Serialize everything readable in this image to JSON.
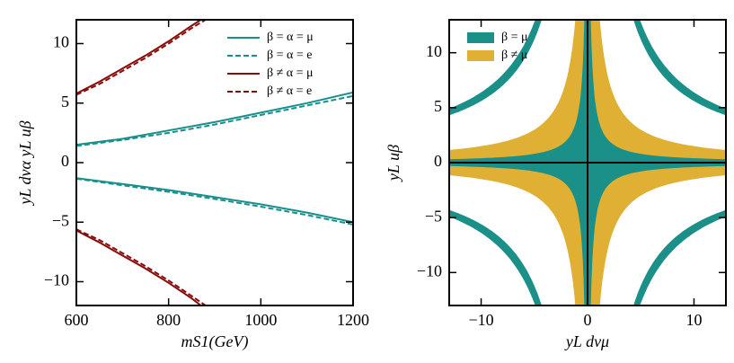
{
  "chart_data": [
    {
      "type": "line",
      "xlabel": "mS1(GeV)",
      "ylabel": "yL dνα yL uβ",
      "xlim": [
        600,
        1200
      ],
      "ylim": [
        -12,
        12
      ],
      "xticks": [
        600,
        800,
        1000,
        1200
      ],
      "yticks": [
        {
          "value": -10,
          "label": "−10"
        },
        {
          "value": -5,
          "label": "−5"
        },
        0,
        5,
        10
      ],
      "legend": "upper right",
      "series": [
        {
          "name": "β = α = μ",
          "color": "#17908c",
          "dash": false,
          "x": [
            600,
            700,
            800,
            900,
            1000,
            1100,
            1200,
            null,
            600,
            700,
            800,
            900,
            1000,
            1100,
            1200
          ],
          "values": [
            1.5,
            2.0,
            2.7,
            3.4,
            4.2,
            5.0,
            5.9,
            null,
            -1.3,
            -1.8,
            -2.3,
            -2.9,
            -3.5,
            -4.2,
            -5.0
          ]
        },
        {
          "name": "β = α = e",
          "color": "#17908c",
          "dash": true,
          "x": [
            600,
            700,
            800,
            900,
            1000,
            1100,
            1200,
            null,
            600,
            700,
            800,
            900,
            1000,
            1100,
            1200
          ],
          "values": [
            1.4,
            1.9,
            2.5,
            3.2,
            4.0,
            4.8,
            5.6,
            null,
            -1.35,
            -1.9,
            -2.45,
            -3.05,
            -3.7,
            -4.4,
            -5.2
          ]
        },
        {
          "name": "β ≠ α = μ",
          "color": "#8b0a0a",
          "dash": false,
          "x": [
            600,
            650,
            700,
            750,
            800,
            850,
            870,
            null,
            600,
            650,
            700,
            750,
            800,
            850,
            870
          ],
          "values": [
            5.8,
            6.8,
            7.9,
            9.0,
            10.2,
            11.5,
            12,
            null,
            -5.7,
            -6.7,
            -7.8,
            -8.9,
            -10.1,
            -11.4,
            -12
          ]
        },
        {
          "name": "β ≠ α = e",
          "color": "#8b0a0a",
          "dash": true,
          "x": [
            600,
            650,
            700,
            750,
            800,
            850,
            880,
            null,
            600,
            650,
            700,
            750,
            800,
            850,
            880
          ],
          "values": [
            5.7,
            6.6,
            7.7,
            8.8,
            10.0,
            11.3,
            12,
            null,
            -5.6,
            -6.5,
            -7.6,
            -8.7,
            -9.9,
            -11.2,
            -12
          ]
        }
      ]
    },
    {
      "type": "region",
      "xlabel": "yL dνμ",
      "ylabel": "yL uβ",
      "xlim": [
        -13,
        13
      ],
      "ylim": [
        -13,
        13
      ],
      "xticks": [
        {
          "value": -10,
          "label": "−10"
        },
        0,
        10
      ],
      "yticks": [
        {
          "value": -10,
          "label": "−10"
        },
        {
          "value": -5,
          "label": "−5"
        },
        0,
        5,
        10
      ],
      "legend": "upper left",
      "series": [
        {
          "name": "β = μ",
          "color": "#1a9088",
          "bands": [
            [
              0,
              4
            ],
            [
              56,
              64
            ]
          ]
        },
        {
          "name": "β ≠ μ",
          "color": "#e0b034",
          "bands": [
            [
              0,
              15
            ]
          ]
        }
      ]
    }
  ]
}
